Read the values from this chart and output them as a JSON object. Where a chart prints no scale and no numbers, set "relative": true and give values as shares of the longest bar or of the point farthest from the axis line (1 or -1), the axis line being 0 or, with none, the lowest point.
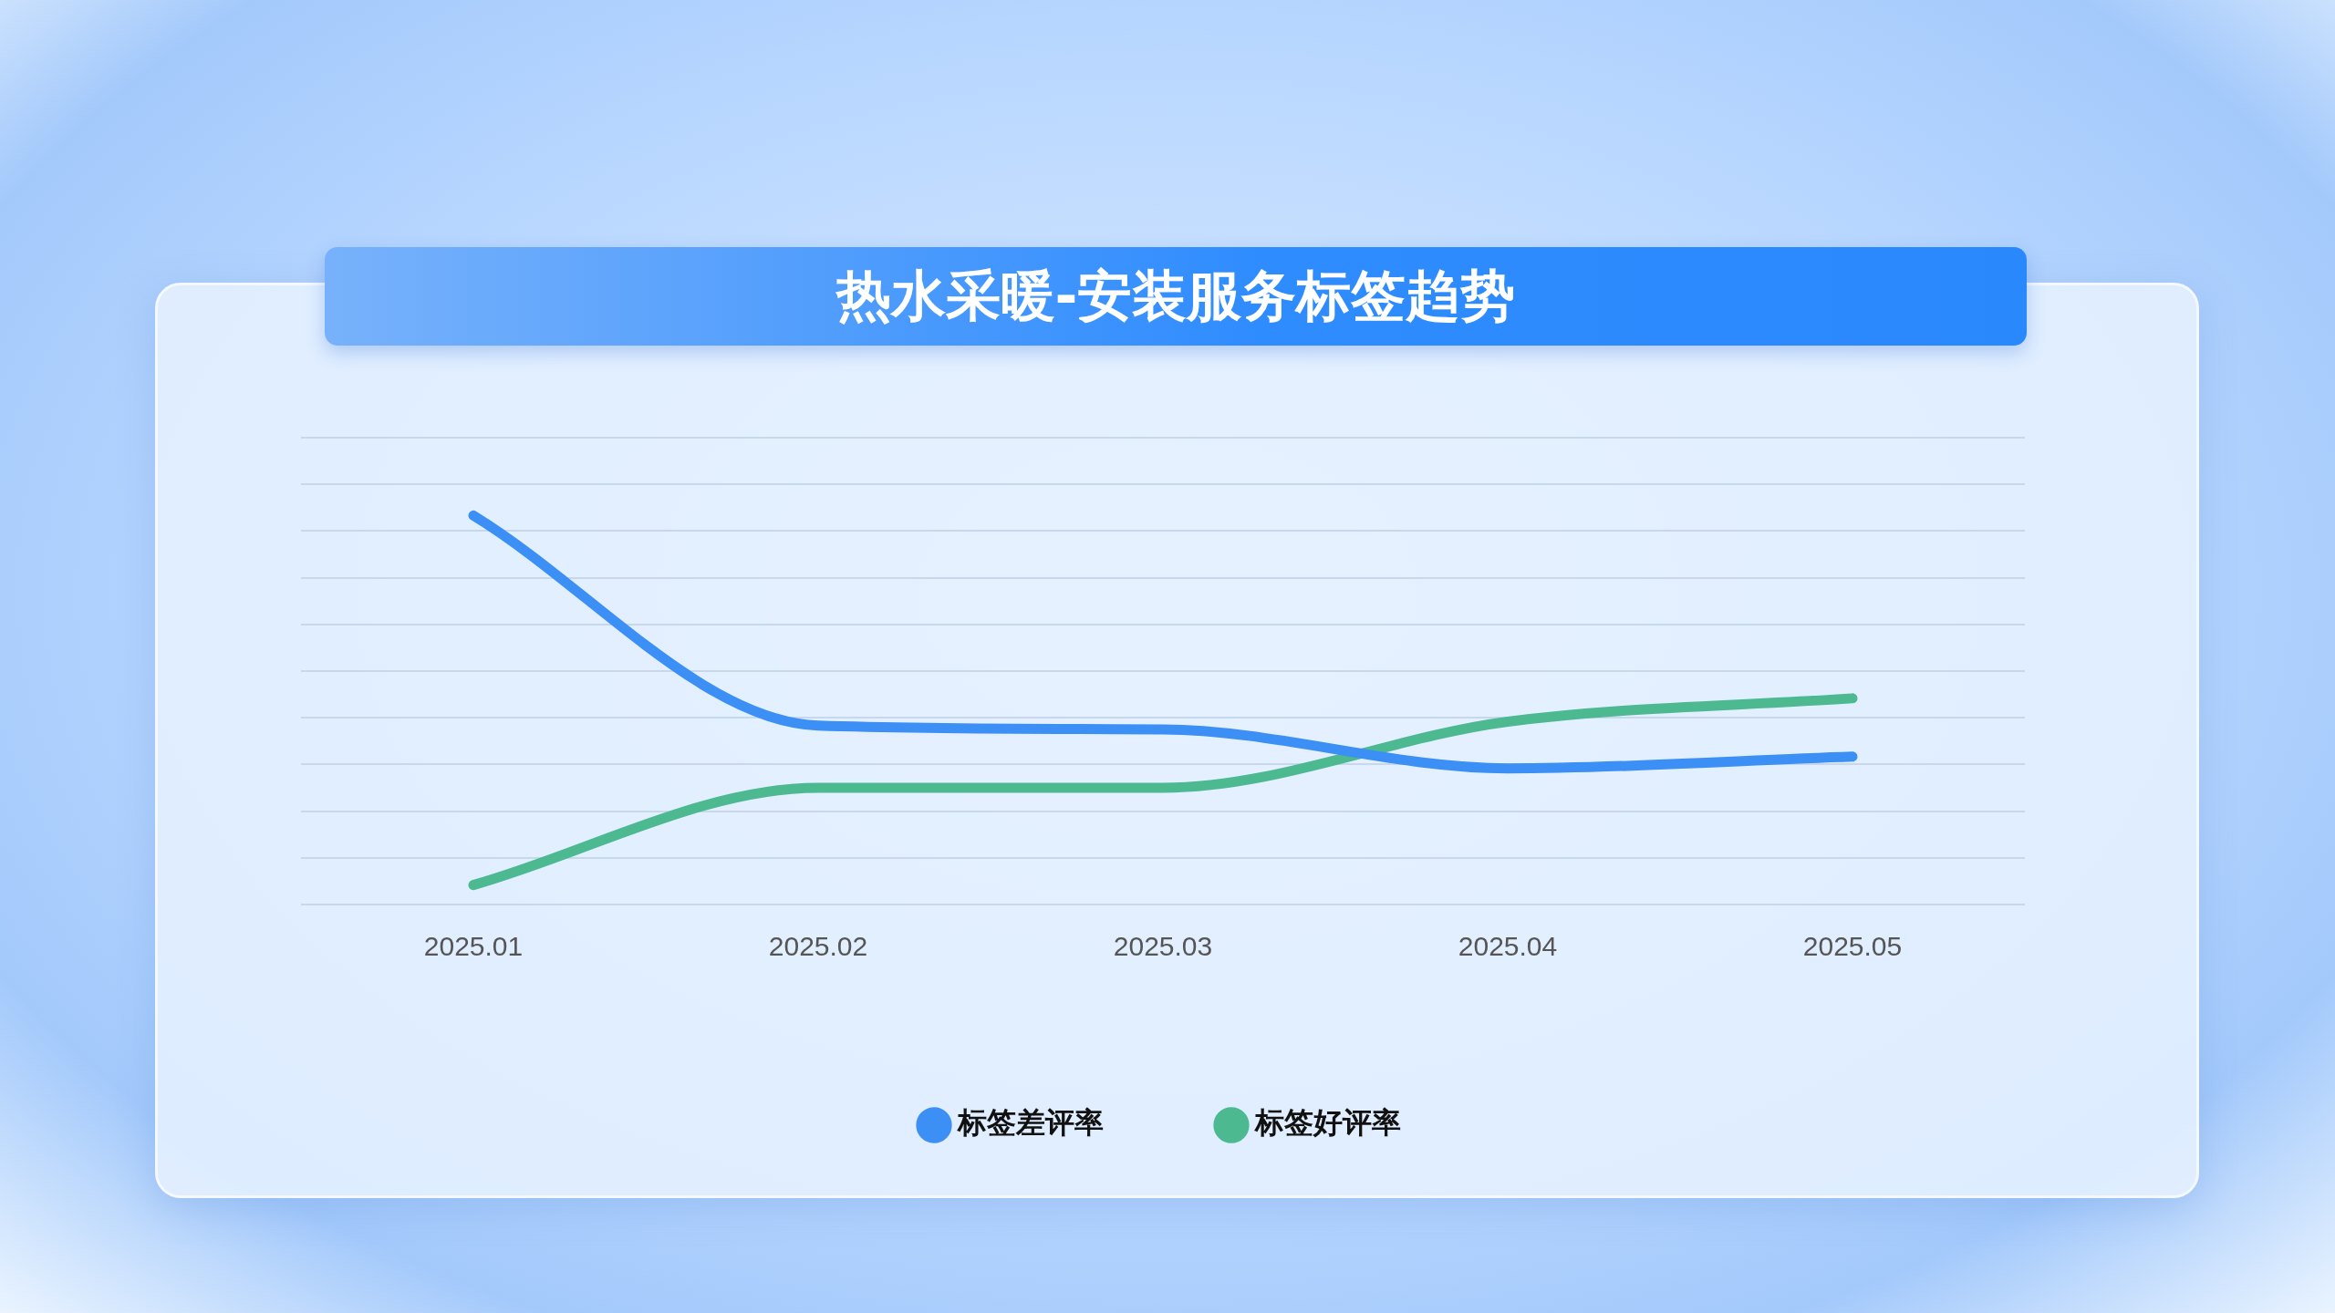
{
  "chart_data": {
    "type": "line",
    "title": "热水采暖-安装服务标签趋势",
    "categories": [
      "2025.01",
      "2025.02",
      "2025.03",
      "2025.04",
      "2025.05"
    ],
    "relative": true,
    "grid": "y",
    "legend": "bottom",
    "marker": "none",
    "line_style": "solid",
    "series": [
      {
        "name": "标签差评率",
        "color": "#3b8ff5",
        "values": [
          1,
          0.46,
          0.45,
          0.35,
          0.38
        ]
      },
      {
        "name": "标签好评率",
        "color": "#4cb990",
        "values": [
          0.05,
          0.3,
          0.3,
          0.47,
          0.53
        ]
      }
    ]
  }
}
